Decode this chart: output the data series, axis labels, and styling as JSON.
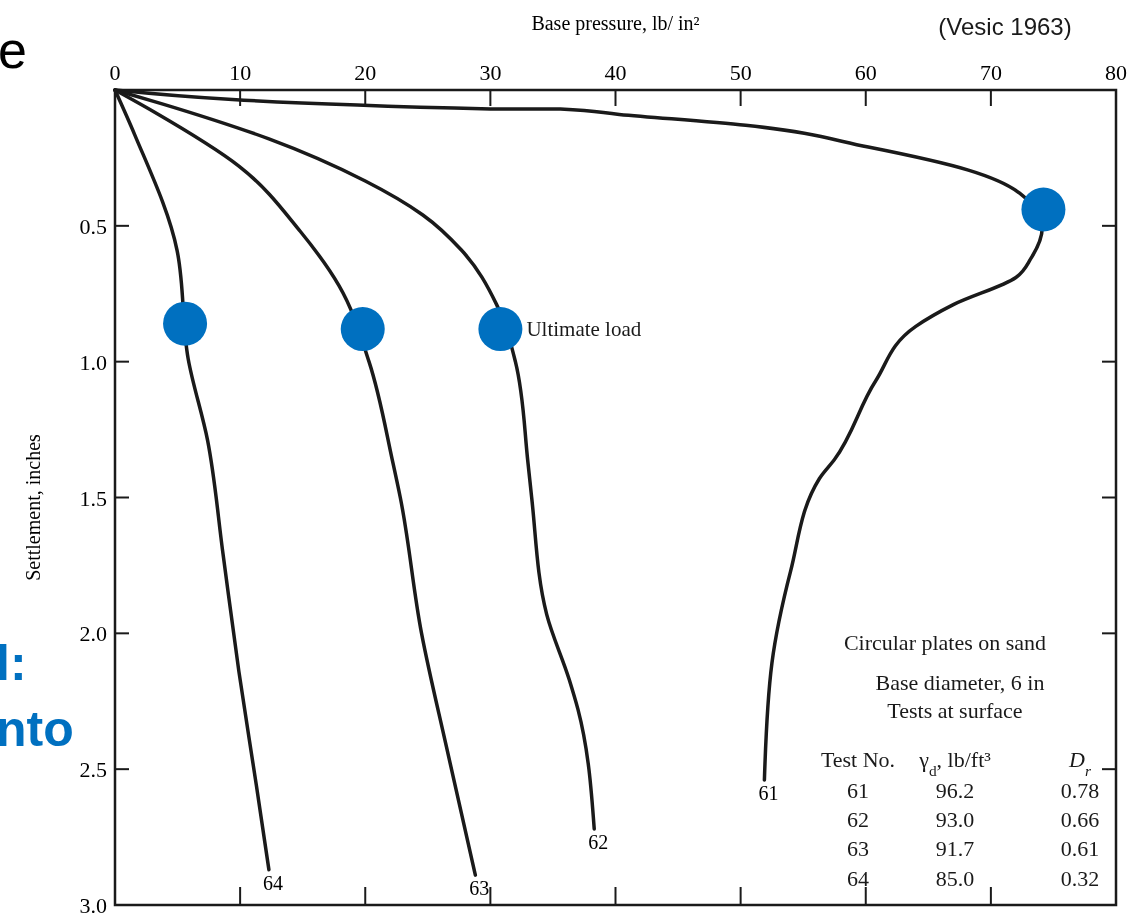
{
  "chart_data": {
    "type": "line",
    "xlabel": "Base pressure, lb/ in²",
    "ylabel": "Settlement, inches",
    "xlim": [
      0,
      80
    ],
    "xticks": [
      0,
      10,
      20,
      30,
      40,
      50,
      60,
      70,
      80
    ],
    "ylim": [
      3,
      0
    ],
    "yticks": [
      {
        "value": 0,
        "label": null
      },
      0.5,
      {
        "value": 1,
        "label": "1.0"
      },
      1.5,
      {
        "value": 2,
        "label": "2.0"
      },
      2.5,
      {
        "value": 3,
        "label": "3.0"
      }
    ],
    "grid": false,
    "marker": "none",
    "line_style": "solid",
    "series": [
      {
        "name": "61",
        "color": "#1a1a1a",
        "x": [
          0,
          30,
          35.6,
          40.3,
          50.4,
          60.2,
          68.2,
          72.3,
          74.1,
          73.2,
          72,
          67,
          64,
          60.8,
          57.5,
          56.3,
          54,
          52.5,
          51.9
        ],
        "values": [
          0,
          0.07,
          0.07,
          0.09,
          0.13,
          0.21,
          0.295,
          0.38,
          0.51,
          0.62,
          0.69,
          0.79,
          0.87,
          1.07,
          1.36,
          1.43,
          1.77,
          2.11,
          2.54
        ]
      },
      {
        "name": "62",
        "color": "#1a1a1a",
        "x": [
          0,
          3.7,
          12.3,
          20,
          24.6,
          27.7,
          30.5,
          32,
          33,
          33.3,
          34.5,
          36.3,
          37,
          38.3
        ],
        "values": [
          0,
          0.05,
          0.18,
          0.335,
          0.46,
          0.59,
          0.79,
          1,
          1.37,
          1.5,
          1.93,
          2.17,
          2.28,
          2.72
        ]
      },
      {
        "name": "63",
        "color": "#1a1a1a",
        "x": [
          0,
          3.1,
          9.9,
          14.8,
          17.9,
          20.3,
          22.2,
          22.8,
          24.5,
          26.5,
          28.8
        ],
        "values": [
          0,
          0.08,
          0.28,
          0.52,
          0.72,
          1,
          1.37,
          1.5,
          2,
          2.42,
          2.89
        ]
      },
      {
        "name": "64",
        "color": "#1a1a1a",
        "x": [
          0,
          1.57,
          4.96,
          5.85,
          7.4,
          8.64,
          9.9,
          11.3,
          12.3
        ],
        "values": [
          0,
          0.164,
          0.59,
          0.99,
          1.29,
          1.71,
          2.14,
          2.56,
          2.87
        ]
      },
      {
        "type": "scatter",
        "marker": "circle",
        "color": "#0070c0",
        "x": [
          5.6,
          19.8,
          30.8,
          74.2
        ],
        "values": [
          0.86,
          0.88,
          0.88,
          0.44
        ]
      }
    ],
    "annotations": [
      "(Vesic 1963)",
      "e",
      "l:",
      "nto",
      "Circular plates on sand",
      "Base diameter, 6 in",
      "Tests at surface",
      "Test No.",
      "γ$_{d}$, lb/ft³",
      "D$_{r}$",
      "61",
      "96.2",
      "0.78",
      "62",
      "93.0",
      "0.66",
      "63",
      "91.7",
      "0.61",
      "64",
      "85.0",
      "0.32",
      {
        "text": "Ultimate load",
        "x": 30.8,
        "y": 0.88
      }
    ]
  }
}
